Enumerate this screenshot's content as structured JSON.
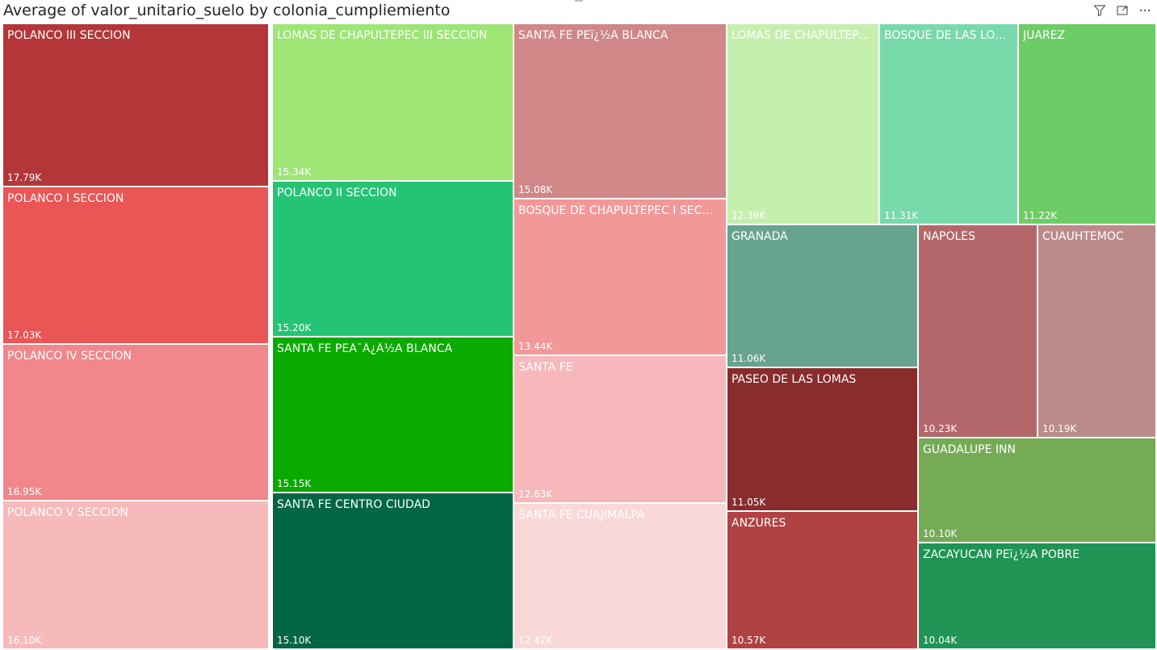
{
  "visual": {
    "title": "Average of valor_unitario_suelo by colonia_cumpliemiento",
    "icons": [
      "filter-icon",
      "focus-mode-icon",
      "more-options-icon"
    ]
  },
  "chart_data": {
    "type": "treemap",
    "title": "Average of valor_unitario_suelo by colonia_cumpliemiento",
    "items": [
      {
        "name": "POLANCO III SECCION",
        "value": 17790,
        "label": "17.79K",
        "color": "#b33638"
      },
      {
        "name": "POLANCO I SECCION",
        "value": 17030,
        "label": "17.03K",
        "color": "#ea5555"
      },
      {
        "name": "POLANCO IV SECCION",
        "value": 16950,
        "label": "16.95K",
        "color": "#f1878b"
      },
      {
        "name": "POLANCO V SECCION",
        "value": 16100,
        "label": "16.10K",
        "color": "#f6baba"
      },
      {
        "name": "LOMAS DE CHAPULTEPEC III SECCION",
        "value": 15340,
        "label": "15.34K",
        "color": "#9de575"
      },
      {
        "name": "POLANCO II SECCION",
        "value": 15200,
        "label": "15.20K",
        "color": "#24c474"
      },
      {
        "name": "SANTA FE PEÃ¯Â¿Â½A BLANCA",
        "value": 15150,
        "label": "15.15K",
        "color": "#0aaa00"
      },
      {
        "name": "SANTA FE CENTRO CIUDAD",
        "value": 15100,
        "label": "15.10K",
        "color": "#026646"
      },
      {
        "name": "SANTA FE PEï¿½A BLANCA",
        "value": 15080,
        "label": "15.08K",
        "color": "#d08787"
      },
      {
        "name": "BOSQUE DE CHAPULTEPEC I SECCION",
        "value": 13440,
        "label": "13.44K",
        "color": "#f29898"
      },
      {
        "name": "SANTA FE",
        "value": 12630,
        "label": "12.63K",
        "color": "#f6b8bb"
      },
      {
        "name": "SANTA FE CUAJIMALPA",
        "value": 12420,
        "label": "12.42K",
        "color": "#f9d8d8"
      },
      {
        "name": "LOMAS DE CHAPULTEPEC...",
        "value": 12390,
        "label": "12.39K",
        "color": "#c5efad"
      },
      {
        "name": "BOSQUE DE LAS LOMAS",
        "value": 11310,
        "label": "11.31K",
        "color": "#78d9ab"
      },
      {
        "name": "JUAREZ",
        "value": 11220,
        "label": "11.22K",
        "color": "#6ccc66"
      },
      {
        "name": "GRANADA",
        "value": 11060,
        "label": "11.06K",
        "color": "#67a38f"
      },
      {
        "name": "PASEO DE LAS LOMAS",
        "value": 11050,
        "label": "11.05K",
        "color": "#892c2c"
      },
      {
        "name": "ANZURES",
        "value": 10570,
        "label": "10.57K",
        "color": "#b04242"
      },
      {
        "name": "NAPOLES",
        "value": 10230,
        "label": "10.23K",
        "color": "#b3676a"
      },
      {
        "name": "CUAUHTEMOC",
        "value": 10190,
        "label": "10.19K",
        "color": "#bb8a8a"
      },
      {
        "name": "GUADALUPE INN",
        "value": 10100,
        "label": "10.10K",
        "color": "#76ab56"
      },
      {
        "name": "ZACAYUCAN PEï¿½A POBRE",
        "value": 10040,
        "label": "10.04K",
        "color": "#1f9455"
      }
    ]
  }
}
